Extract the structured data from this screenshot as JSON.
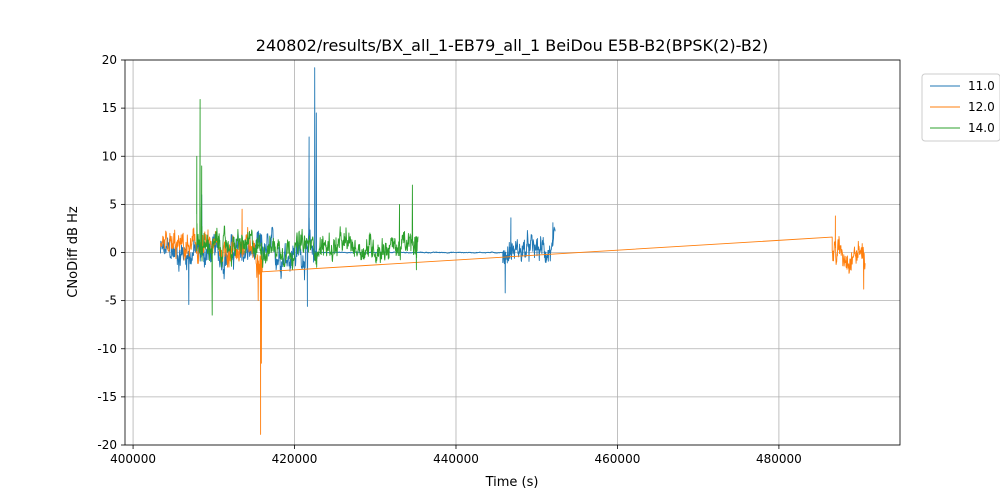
{
  "chart_data": {
    "type": "line",
    "title": "240802/results/BX_all_1-EB79_all_1 BeiDou E5B-B2(BPSK(2)-B2)",
    "xlabel": "Time (s)",
    "ylabel": "CNoDiff dB Hz",
    "xlim": [
      399000,
      495000
    ],
    "ylim": [
      -20,
      20
    ],
    "xticks": [
      400000,
      420000,
      440000,
      460000,
      480000
    ],
    "yticks": [
      -20,
      -15,
      -10,
      -5,
      0,
      5,
      10,
      15,
      20
    ],
    "grid": true,
    "legend_position": "upper-right-outside",
    "series": [
      {
        "name": "11.0",
        "color": "#1f77b4",
        "segments": [
          {
            "x_start": 403400,
            "x_end": 422800,
            "base": 0.3,
            "noise": 1.6,
            "bias": -0.3
          },
          {
            "x_start": 422800,
            "x_end": 445800,
            "base": 0.0,
            "noise": 0.05,
            "bias": 0
          },
          {
            "x_start": 445800,
            "x_end": 452300,
            "base": 0.2,
            "noise": 1.4,
            "bias": 0
          }
        ],
        "peaks": [
          {
            "x": 422500,
            "y": 19.2
          },
          {
            "x": 422700,
            "y": 14.5
          },
          {
            "x": 421800,
            "y": 12.0
          },
          {
            "x": 408500,
            "y": 6.0
          },
          {
            "x": 406900,
            "y": -5.4
          },
          {
            "x": 421600,
            "y": -5.6
          },
          {
            "x": 446100,
            "y": -4.2
          },
          {
            "x": 446800,
            "y": 3.6
          },
          {
            "x": 452000,
            "y": 3.1
          }
        ]
      },
      {
        "name": "12.0",
        "color": "#ff7f0e",
        "segments": [
          {
            "x_start": 403400,
            "x_end": 416000,
            "base": 0.4,
            "noise": 1.5,
            "bias": 0
          },
          {
            "x_start": 416000,
            "x_end": 486600,
            "base": -2.0,
            "noise": 0.0,
            "bias": 0,
            "interp_end": 1.6
          },
          {
            "x_start": 486600,
            "x_end": 490700,
            "base": 0.0,
            "noise": 1.5,
            "bias": 0
          }
        ],
        "peaks": [
          {
            "x": 415800,
            "y": -18.9
          },
          {
            "x": 415900,
            "y": -11.5
          },
          {
            "x": 413500,
            "y": 4.5
          },
          {
            "x": 415500,
            "y": -5.0
          },
          {
            "x": 487000,
            "y": 3.8
          },
          {
            "x": 490500,
            "y": -3.8
          }
        ]
      },
      {
        "name": "14.0",
        "color": "#2ca02c",
        "segments": [
          {
            "x_start": 407900,
            "x_end": 435300,
            "base": 0.6,
            "noise": 1.4,
            "bias": 0
          }
        ],
        "peaks": [
          {
            "x": 408300,
            "y": 15.9
          },
          {
            "x": 407900,
            "y": 10.0
          },
          {
            "x": 408500,
            "y": 9.0
          },
          {
            "x": 409800,
            "y": -6.5
          },
          {
            "x": 434600,
            "y": 7.0
          },
          {
            "x": 433000,
            "y": 5.0
          },
          {
            "x": 435100,
            "y": -1.8
          }
        ]
      }
    ]
  }
}
